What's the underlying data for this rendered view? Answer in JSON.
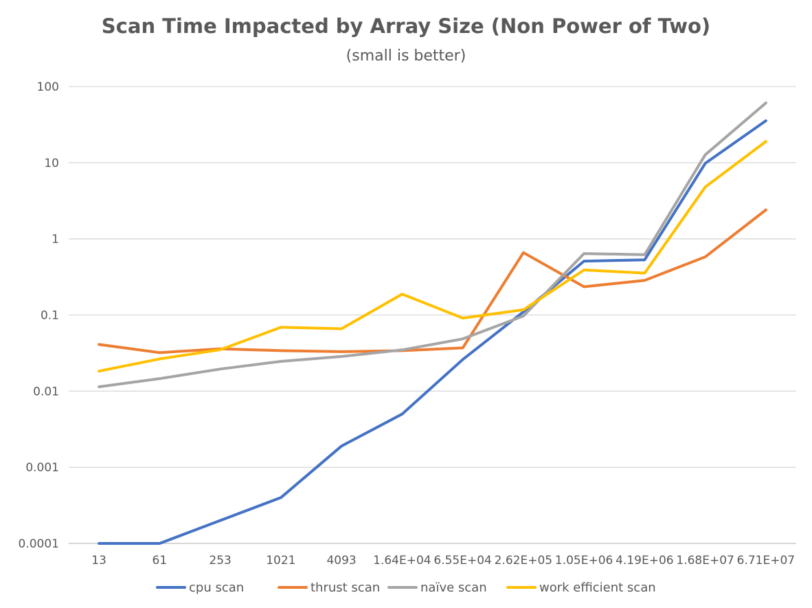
{
  "chart_data": {
    "type": "line",
    "title": "Scan Time Impacted by Array Size (Non Power of Two)",
    "subtitle": "(small is better)",
    "xlabel": "",
    "ylabel": "",
    "yscale": "log",
    "ylim": [
      0.0001,
      100
    ],
    "y_ticks": [
      {
        "value": 100,
        "label": "100"
      },
      {
        "value": 10,
        "label": "10"
      },
      {
        "value": 1,
        "label": "1"
      },
      {
        "value": 0.1,
        "label": "0.1"
      },
      {
        "value": 0.01,
        "label": "0.01"
      },
      {
        "value": 0.001,
        "label": "0.001"
      },
      {
        "value": 0.0001,
        "label": "0.0001"
      }
    ],
    "grid": true,
    "legend_position": "bottom",
    "categories": [
      "13",
      "61",
      "253",
      "1021",
      "4093",
      "1.64E+04",
      "6.55E+04",
      "2.62E+05",
      "1.05E+06",
      "4.19E+06",
      "1.68E+07",
      "6.71E+07"
    ],
    "series": [
      {
        "name": "cpu scan",
        "color": "#4472c4",
        "values": [
          0.0001,
          0.0001,
          0.0002,
          0.0004,
          0.0019,
          0.005,
          0.026,
          0.11,
          0.51,
          0.53,
          9.8,
          35.5
        ]
      },
      {
        "name": "thrust scan",
        "color": "#ed7d31",
        "values": [
          0.041,
          0.032,
          0.036,
          0.034,
          0.033,
          0.034,
          0.037,
          0.66,
          0.235,
          0.285,
          0.58,
          2.4
        ]
      },
      {
        "name": "naïve scan",
        "color": "#a5a5a5",
        "values": [
          0.0114,
          0.0146,
          0.0195,
          0.0246,
          0.0285,
          0.0348,
          0.0485,
          0.097,
          0.64,
          0.62,
          12.7,
          61
        ]
      },
      {
        "name": "work efficient scan",
        "color": "#ffc000",
        "values": [
          0.0183,
          0.0265,
          0.035,
          0.069,
          0.066,
          0.188,
          0.091,
          0.117,
          0.39,
          0.355,
          4.8,
          19
        ]
      }
    ]
  }
}
